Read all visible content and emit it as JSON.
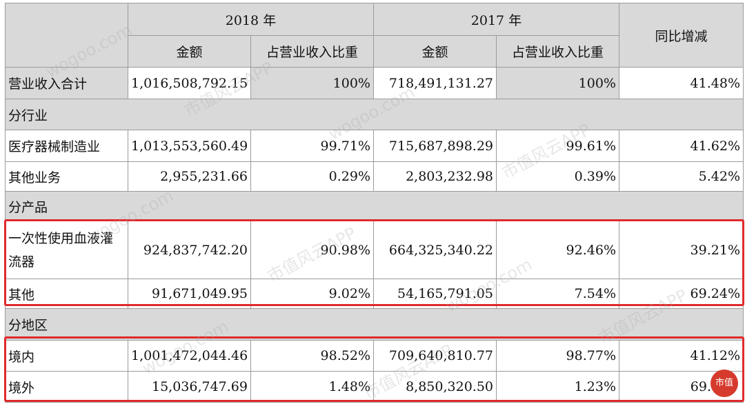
{
  "header": {
    "year_2018": "2018 年",
    "year_2017": "2017 年",
    "amount": "金额",
    "share": "占营业收入比重",
    "yoy": "同比增减"
  },
  "rows": {
    "total": {
      "label": "营业收入合计",
      "a2018": "1,016,508,792.15",
      "p2018": "100%",
      "a2017": "718,491,131.27",
      "p2017": "100%",
      "yoy": "41.48%"
    },
    "sec_industry": "分行业",
    "medical": {
      "label": "医疗器械制造业",
      "a2018": "1,013,553,560.49",
      "p2018": "99.71%",
      "a2017": "715,687,898.29",
      "p2017": "99.61%",
      "yoy": "41.62%"
    },
    "other_biz": {
      "label": "其他业务",
      "a2018": "2,955,231.66",
      "p2018": "0.29%",
      "a2017": "2,803,232.98",
      "p2017": "0.39%",
      "yoy": "5.42%"
    },
    "sec_product": "分产品",
    "infuser": {
      "label": "一次性使用血液灌流器",
      "a2018": "924,837,742.20",
      "p2018": "90.98%",
      "a2017": "664,325,340.22",
      "p2017": "92.46%",
      "yoy": "39.21%"
    },
    "other_prod": {
      "label": "其他",
      "a2018": "91,671,049.95",
      "p2018": "9.02%",
      "a2017": "54,165,791.05",
      "p2017": "7.54%",
      "yoy": "69.24%"
    },
    "sec_region": "分地区",
    "domestic": {
      "label": "境内",
      "a2018": "1,001,472,044.46",
      "p2018": "98.52%",
      "a2017": "709,640,810.77",
      "p2017": "98.77%",
      "yoy": "41.12%"
    },
    "overseas": {
      "label": "境外",
      "a2018": "15,036,747.69",
      "p2018": "1.48%",
      "a2017": "8,850,320.50",
      "p2017": "1.23%",
      "yoy": "69."
    }
  },
  "watermarks": [
    "wogoo.com",
    "市值风云APP"
  ],
  "logo_text": "市值"
}
